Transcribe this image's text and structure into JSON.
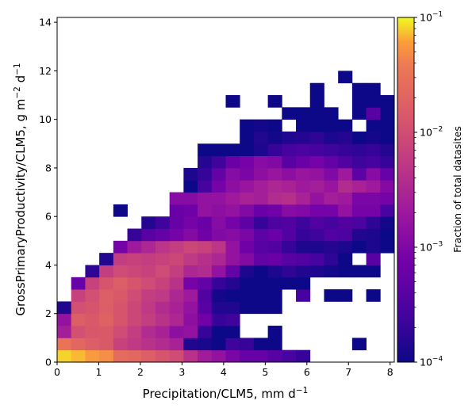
{
  "chart_data": {
    "type": "heatmap",
    "xlabel": "Precipitation/CLM5,  mm d",
    "xlabel_sup": "−1",
    "ylabel_parts": [
      "GrossPrimaryProductivity/CLM5,  g m",
      "−2",
      " d",
      "−1"
    ],
    "xlim": [
      0,
      8.1
    ],
    "ylim": [
      0,
      14.2
    ],
    "x_bin_width": 0.3375,
    "y_bin_width": 0.5,
    "xticks": [
      0,
      1,
      2,
      3,
      4,
      5,
      6,
      7,
      8
    ],
    "xtick_labels": [
      "0",
      "1",
      "2",
      "3",
      "4",
      "5",
      "6",
      "7",
      "8"
    ],
    "yticks": [
      0,
      2,
      4,
      6,
      8,
      10,
      12,
      14
    ],
    "ytick_labels": [
      "0",
      "2",
      "4",
      "6",
      "8",
      "10",
      "12",
      "14"
    ],
    "colorbar": {
      "label": "Fraction of total datasites",
      "scale": "log",
      "colormap": "plasma",
      "range": [
        0.0001,
        0.1
      ],
      "ticks": [
        {
          "base": "10",
          "exp": "−1"
        },
        {
          "base": "10",
          "exp": "−2"
        },
        {
          "base": "10",
          "exp": "−3"
        },
        {
          "base": "10",
          "exp": "−4"
        }
      ]
    },
    "grid_encoding": "rows listed from y bin 0 (0–0.5) upward; each row lists color-scale position per x bin (0 = 1e-4, 1 = 1e-1), null = empty",
    "grid": [
      [
        0.97,
        0.95,
        0.92,
        0.9,
        0.8,
        0.78,
        0.74,
        0.7,
        0.66,
        0.55,
        0.45,
        0.4,
        0.32,
        0.25,
        0.25,
        0.2,
        0.15,
        0.1,
        null,
        null,
        null,
        null,
        null,
        null
      ],
      [
        0.83,
        0.78,
        0.74,
        0.72,
        0.62,
        0.58,
        0.55,
        0.52,
        0.48,
        0.05,
        0.03,
        0.0,
        0.12,
        0.1,
        0.0,
        0.0,
        null,
        null,
        null,
        null,
        null,
        0.0,
        null,
        null
      ],
      [
        0.46,
        0.68,
        0.71,
        0.72,
        0.66,
        0.6,
        0.52,
        0.48,
        0.38,
        0.4,
        0.1,
        0.0,
        0.0,
        null,
        null,
        0.0,
        null,
        null,
        null,
        null,
        null,
        null,
        null,
        null
      ],
      [
        0.4,
        0.74,
        0.72,
        0.76,
        0.7,
        0.64,
        0.6,
        0.55,
        0.5,
        0.38,
        0.28,
        0.1,
        0.12,
        null,
        null,
        null,
        null,
        null,
        null,
        null,
        null,
        null,
        null,
        null
      ],
      [
        0.05,
        0.68,
        0.7,
        0.74,
        0.7,
        0.64,
        0.58,
        0.52,
        0.48,
        0.4,
        0.2,
        0.05,
        0.05,
        0.0,
        0.0,
        0.0,
        null,
        null,
        null,
        null,
        null,
        null,
        null,
        null
      ],
      [
        null,
        0.62,
        0.68,
        0.74,
        0.72,
        0.66,
        0.6,
        0.58,
        0.5,
        0.44,
        0.18,
        0.02,
        0.0,
        0.0,
        0.0,
        0.0,
        null,
        0.14,
        null,
        0.0,
        0.0,
        null,
        0.0,
        null
      ],
      [
        null,
        0.25,
        0.62,
        0.7,
        0.74,
        0.7,
        0.66,
        0.62,
        0.55,
        0.3,
        0.24,
        0.1,
        0.06,
        0.0,
        0.0,
        0.0,
        0.0,
        0.0,
        null,
        null,
        null,
        null,
        null,
        null
      ],
      [
        null,
        null,
        0.08,
        0.6,
        0.66,
        0.64,
        0.62,
        0.66,
        0.6,
        0.5,
        0.52,
        0.4,
        0.24,
        0.04,
        0.0,
        0.04,
        0.08,
        0.05,
        0.04,
        0.02,
        0.0,
        0.0,
        0.0,
        null
      ],
      [
        null,
        null,
        null,
        0.05,
        0.6,
        0.62,
        0.6,
        0.62,
        0.64,
        0.58,
        0.54,
        0.5,
        0.4,
        0.35,
        0.24,
        0.26,
        0.2,
        0.18,
        0.14,
        0.08,
        0.0,
        null,
        0.2,
        null
      ],
      [
        null,
        null,
        null,
        null,
        0.3,
        0.44,
        0.5,
        0.56,
        0.6,
        0.64,
        0.62,
        0.56,
        0.4,
        0.28,
        0.2,
        0.18,
        0.1,
        0.04,
        0.04,
        0.06,
        0.04,
        0.0,
        0.04,
        0.0
      ],
      [
        null,
        null,
        null,
        null,
        null,
        0.1,
        0.2,
        0.24,
        0.3,
        0.35,
        0.28,
        0.34,
        0.36,
        0.32,
        0.22,
        0.26,
        0.18,
        0.1,
        0.12,
        0.18,
        0.16,
        0.05,
        0.04,
        0.0
      ],
      [
        null,
        null,
        null,
        null,
        null,
        null,
        0.06,
        0.12,
        0.25,
        0.3,
        0.26,
        0.36,
        0.3,
        0.22,
        0.1,
        0.16,
        0.18,
        0.12,
        0.18,
        0.14,
        0.18,
        0.16,
        0.08,
        0.02
      ],
      [
        null,
        null,
        null,
        null,
        0.0,
        null,
        null,
        null,
        0.26,
        0.28,
        0.4,
        0.38,
        0.4,
        0.34,
        0.26,
        0.28,
        0.36,
        0.34,
        0.3,
        0.3,
        0.4,
        0.3,
        0.3,
        0.15
      ],
      [
        null,
        null,
        null,
        null,
        null,
        null,
        null,
        null,
        0.36,
        0.36,
        0.4,
        0.4,
        0.44,
        0.48,
        0.46,
        0.52,
        0.54,
        0.48,
        0.4,
        0.46,
        0.44,
        0.32,
        0.32,
        0.3
      ],
      [
        null,
        null,
        null,
        null,
        null,
        null,
        null,
        null,
        null,
        0.0,
        0.14,
        0.3,
        0.38,
        0.42,
        0.46,
        0.5,
        0.48,
        0.44,
        0.46,
        0.42,
        0.52,
        0.48,
        0.44,
        0.35
      ],
      [
        null,
        null,
        null,
        null,
        null,
        null,
        null,
        null,
        null,
        0.04,
        0.1,
        0.24,
        0.36,
        0.32,
        0.38,
        0.42,
        0.38,
        0.42,
        0.4,
        0.34,
        0.44,
        0.22,
        0.36,
        0.25
      ],
      [
        null,
        null,
        null,
        null,
        null,
        null,
        null,
        null,
        null,
        null,
        0.06,
        0.12,
        0.26,
        0.3,
        0.36,
        0.34,
        0.2,
        0.26,
        0.3,
        0.24,
        0.18,
        0.12,
        0.14,
        0.1
      ],
      [
        null,
        null,
        null,
        null,
        null,
        null,
        null,
        null,
        null,
        null,
        0.0,
        0.0,
        0.0,
        0.0,
        0.04,
        0.1,
        0.14,
        0.16,
        0.14,
        0.12,
        0.1,
        0.08,
        0.1,
        0.06
      ],
      [
        null,
        null,
        null,
        null,
        null,
        null,
        null,
        null,
        null,
        null,
        null,
        null,
        null,
        0.0,
        0.05,
        0.02,
        0.05,
        0.06,
        0.08,
        0.04,
        0.06,
        0.0,
        0.02,
        0.0
      ],
      [
        null,
        null,
        null,
        null,
        null,
        null,
        null,
        null,
        null,
        null,
        null,
        null,
        null,
        0.0,
        0.02,
        0.0,
        null,
        0.0,
        0.0,
        0.0,
        0.0,
        null,
        0.0,
        0.0
      ],
      [
        null,
        null,
        null,
        null,
        null,
        null,
        null,
        null,
        null,
        null,
        null,
        null,
        null,
        null,
        null,
        null,
        0.0,
        0.0,
        0.0,
        0.0,
        null,
        0.0,
        0.2,
        0.0
      ],
      [
        null,
        null,
        null,
        null,
        null,
        null,
        null,
        null,
        null,
        null,
        null,
        null,
        0.0,
        null,
        null,
        0.0,
        null,
        null,
        0.0,
        null,
        null,
        0.0,
        0.0,
        0.0
      ],
      [
        null,
        null,
        null,
        null,
        null,
        null,
        null,
        null,
        null,
        null,
        null,
        null,
        null,
        null,
        null,
        null,
        null,
        null,
        0.0,
        null,
        null,
        0.0,
        0.0,
        null
      ],
      [
        null,
        null,
        null,
        null,
        null,
        null,
        null,
        null,
        null,
        null,
        null,
        null,
        null,
        null,
        null,
        null,
        null,
        null,
        null,
        null,
        0.0,
        null,
        null,
        null
      ]
    ]
  }
}
